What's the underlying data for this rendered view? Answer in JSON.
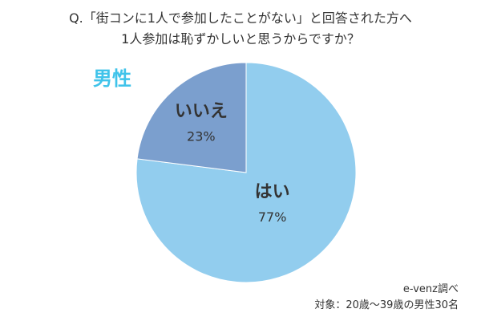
{
  "question": {
    "line1": "Q.「街コンに1人で参加したことがない」と回答された方へ",
    "line2": "1人参加は恥ずかしいと思うからですか？"
  },
  "segment_label": "男性",
  "source": {
    "line1": "e-venz調べ",
    "line2": "対象：20歳〜39歳の男性30名"
  },
  "colors": {
    "accent": "#3fc3ea",
    "slice_yes": "#92cdee",
    "slice_no": "#7b9fce",
    "text": "#333333"
  },
  "chart_data": {
    "type": "pie",
    "title": "",
    "categories": [
      "はい",
      "いいえ"
    ],
    "values": [
      77,
      23
    ],
    "value_labels": [
      "77%",
      "23%"
    ],
    "unit": "%",
    "colors": [
      "#92cdee",
      "#7b9fce"
    ],
    "start": "top, clockwise",
    "legend": "none (labels inside slices)"
  }
}
